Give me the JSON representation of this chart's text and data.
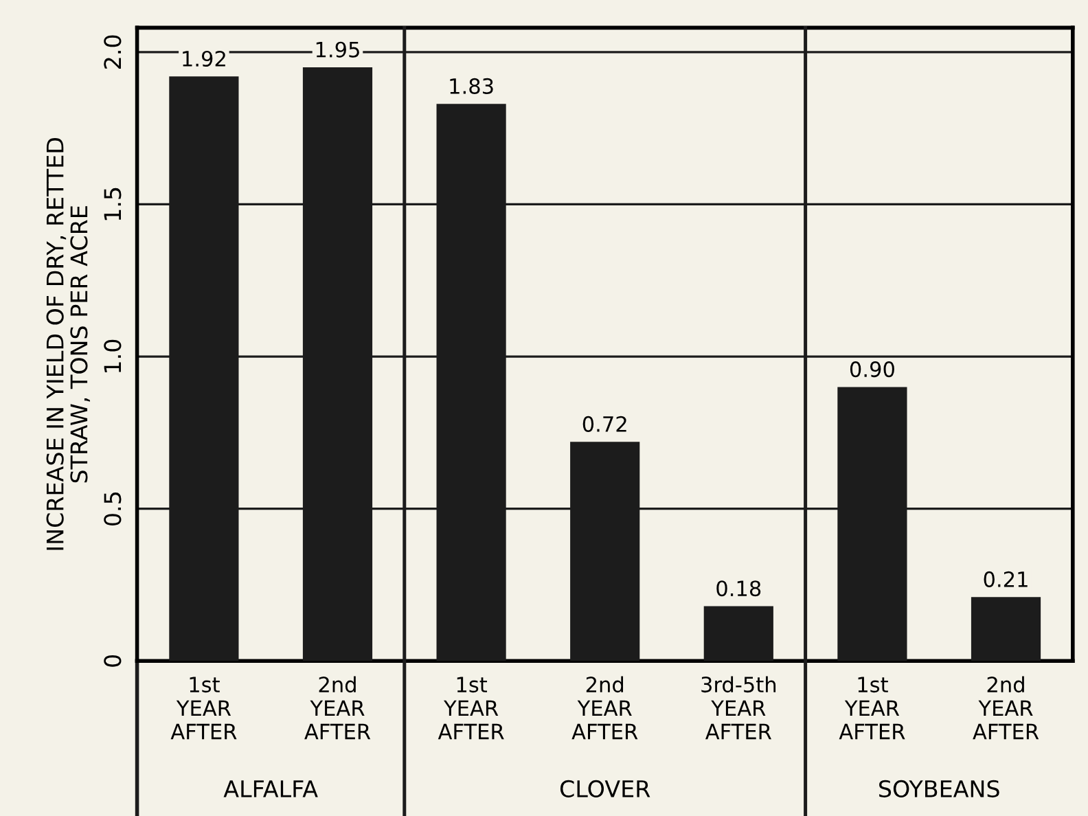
{
  "chart_data": {
    "type": "bar",
    "ylabel": "INCREASE IN YIELD OF DRY, RETTED\nSTRAW, TONS PER ACRE",
    "categories": [
      "1st\nYEAR\nAFTER",
      "2nd\nYEAR\nAFTER",
      "1st\nYEAR\nAFTER",
      "2nd\nYEAR\nAFTER",
      "3rd-5th\nYEAR\nAFTER",
      "1st\nYEAR\nAFTER",
      "2nd\nYEAR\nAFTER"
    ],
    "values": [
      1.92,
      1.95,
      1.83,
      0.72,
      0.18,
      0.9,
      0.21
    ],
    "color": "#1c1c1c",
    "value_labels": [
      "1.92",
      "1.95",
      "1.83",
      "0.72",
      "0.18",
      "0.90",
      "0.21"
    ],
    "grid": "y",
    "ylim": [
      0,
      2.08
    ],
    "yticks": [
      0,
      {
        "value": 0.5,
        "label": "0.5"
      },
      {
        "value": 1.0,
        "label": "1.0"
      },
      {
        "value": 1.5,
        "label": "1.5"
      },
      {
        "value": 2.0,
        "label": "2.0"
      }
    ],
    "annotations": [
      "ALFALFA",
      "CLOVER",
      "SOYBEANS"
    ]
  }
}
